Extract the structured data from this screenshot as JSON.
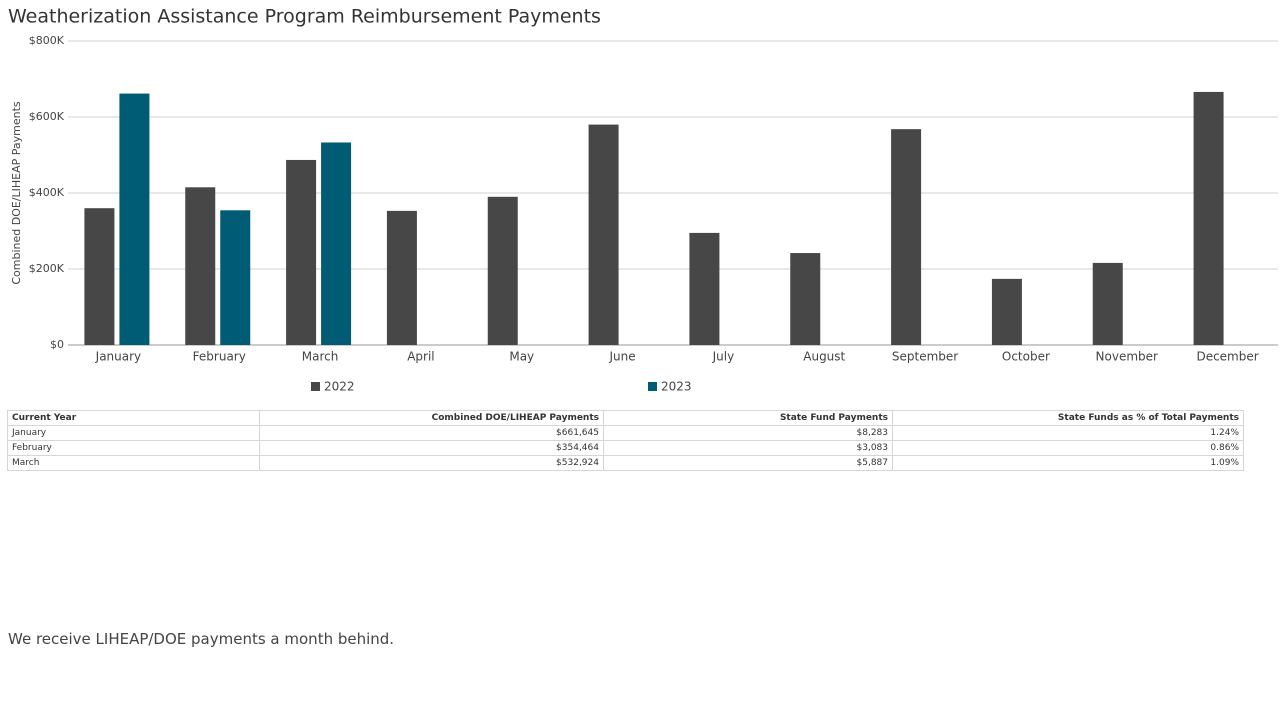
{
  "chart_data": {
    "type": "bar",
    "title": "Weatherization Assistance Program Reimbursement Payments",
    "y_label": "Combined DOE/LIHEAP Payments",
    "categories": [
      "January",
      "February",
      "March",
      "April",
      "May",
      "June",
      "July",
      "August",
      "September",
      "October",
      "November",
      "December"
    ],
    "series": [
      {
        "name": "2022",
        "color": "#474747",
        "values": [
          360000,
          415000,
          487000,
          353000,
          390000,
          580000,
          295000,
          242000,
          568000,
          174000,
          216000,
          666000
        ]
      },
      {
        "name": "2023",
        "color": "#005b74",
        "values": [
          661645,
          354464,
          532924,
          null,
          null,
          null,
          null,
          null,
          null,
          null,
          null,
          null
        ]
      }
    ],
    "ylim": [
      0,
      800000
    ],
    "yticks": [
      {
        "value": 0,
        "label": "$0"
      },
      {
        "value": 200000,
        "label": "$200K"
      },
      {
        "value": 400000,
        "label": "$400K"
      },
      {
        "value": 600000,
        "label": "$600K"
      },
      {
        "value": 800000,
        "label": "$800K"
      }
    ],
    "grid": true
  },
  "table": {
    "header": [
      "Current Year",
      "Combined DOE/LIHEAP Payments",
      "State Fund Payments",
      "State Funds as % of Total Payments"
    ],
    "rows": [
      [
        "January",
        "$661,645",
        "$8,283",
        "1.24%"
      ],
      [
        "February",
        "$354,464",
        "$3,083",
        "0.86%"
      ],
      [
        "March",
        "$532,924",
        "$5,887",
        "1.09%"
      ]
    ]
  },
  "note": "We receive LIHEAP/DOE payments a month behind."
}
